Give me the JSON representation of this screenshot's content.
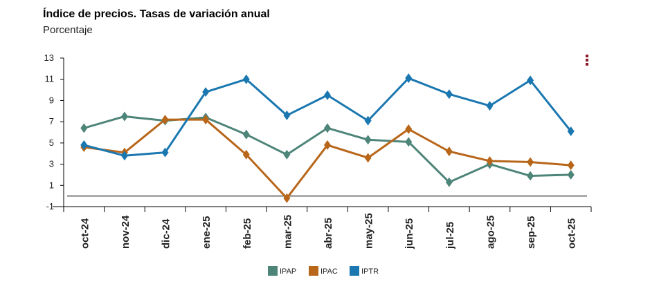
{
  "colors": {
    "IPAP": "#4e8579",
    "IPAC": "#b8661a",
    "IPTR": "#1a77b0",
    "zero_line": "#808080",
    "menu": "#8b1a2b"
  },
  "chart_data": {
    "type": "line",
    "title": "Índice de precios. Tasas de variación anual",
    "subtitle": "Porcentaje",
    "categories": [
      "oct-24",
      "nov-24",
      "dic-24",
      "ene-25",
      "feb-25",
      "mar-25",
      "abr-25",
      "may-25",
      "jun-25",
      "jul-25",
      "ago-25",
      "sep-25",
      "oct-25"
    ],
    "yticks": [
      13,
      11,
      9,
      7,
      5,
      3,
      1,
      -1
    ],
    "ylim": [
      -1,
      13
    ],
    "series": [
      {
        "name": "IPAP",
        "values": [
          6.4,
          7.5,
          7.1,
          7.4,
          5.8,
          3.9,
          6.4,
          5.3,
          5.1,
          1.3,
          3.0,
          1.9,
          2.0
        ]
      },
      {
        "name": "IPAC",
        "values": [
          4.6,
          4.1,
          7.2,
          7.2,
          3.9,
          -0.2,
          4.8,
          3.6,
          6.3,
          4.2,
          3.3,
          3.2,
          2.9
        ]
      },
      {
        "name": "IPTR",
        "values": [
          4.8,
          3.8,
          4.1,
          9.8,
          11.0,
          7.6,
          9.5,
          7.1,
          11.1,
          9.6,
          8.5,
          10.9,
          6.1
        ]
      }
    ],
    "legend": [
      "IPAP",
      "IPAC",
      "IPTR"
    ]
  }
}
